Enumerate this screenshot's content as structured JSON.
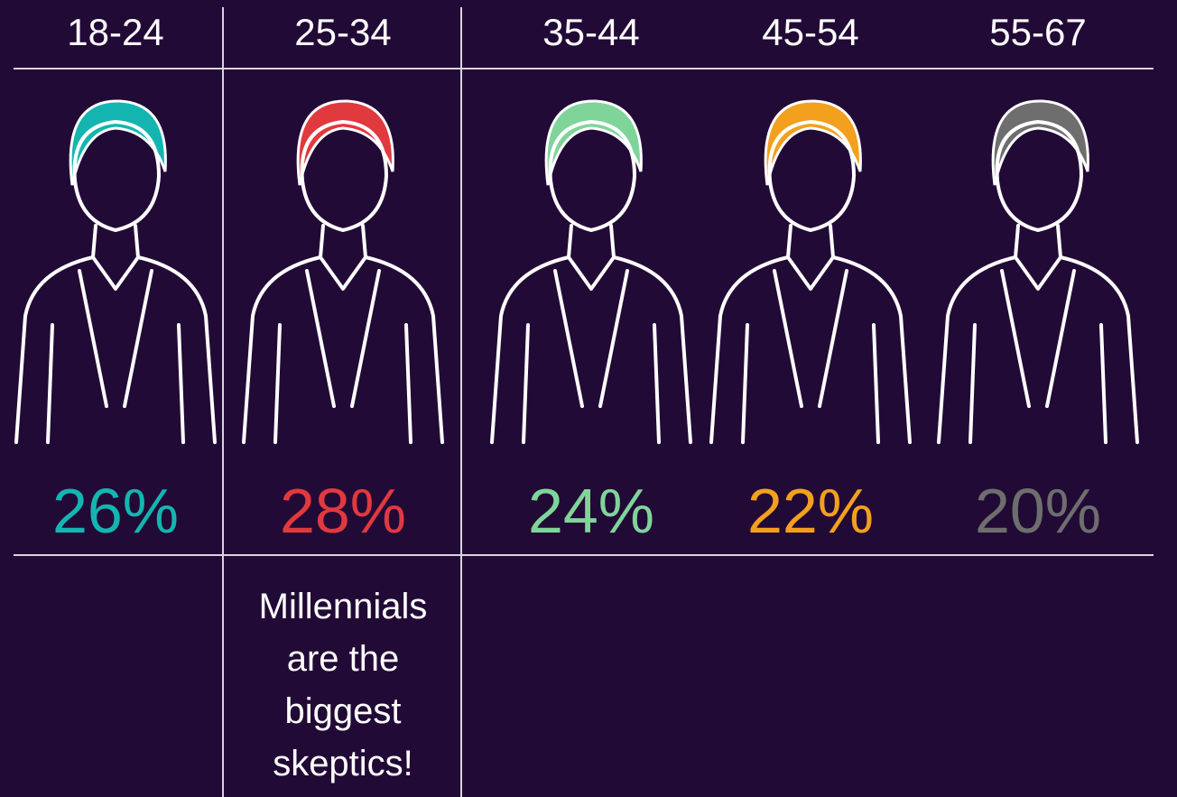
{
  "columns": [
    {
      "label": "18-24",
      "percent": "26%",
      "color": "#14b5b0"
    },
    {
      "label": "25-34",
      "percent": "28%",
      "color": "#e0393e"
    },
    {
      "label": "35-44",
      "percent": "24%",
      "color": "#7fd49a"
    },
    {
      "label": "45-54",
      "percent": "22%",
      "color": "#f2a01e"
    },
    {
      "label": "55-67",
      "percent": "20%",
      "color": "#6e6e6e"
    }
  ],
  "note": {
    "column": 1,
    "lines": [
      "Millennials",
      "are the",
      "biggest",
      "skeptics!"
    ]
  }
}
